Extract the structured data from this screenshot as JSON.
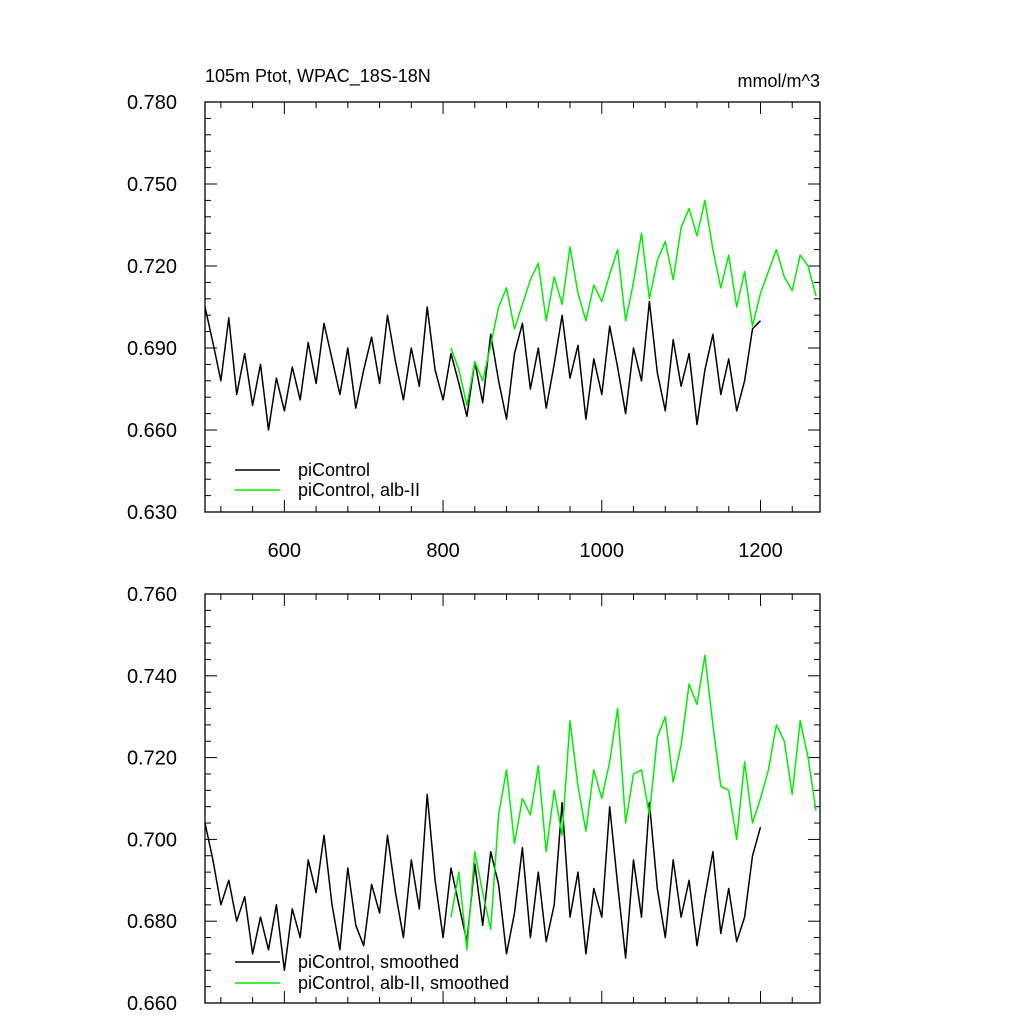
{
  "chart_data": [
    {
      "type": "line",
      "title": "105m Ptot, WPAC_18S-18N",
      "units": "mmol/m^3",
      "xlim": [
        500,
        1275
      ],
      "ylim": [
        0.63,
        0.78
      ],
      "xticks": [
        600,
        800,
        1000,
        1200
      ],
      "xtick_labels": [
        "600",
        "800",
        "1000",
        "1200"
      ],
      "yticks": [
        0.63,
        0.66,
        0.69,
        0.72,
        0.75,
        0.78
      ],
      "ytick_labels": [
        "0.630",
        "0.660",
        "0.690",
        "0.720",
        "0.750",
        "0.780"
      ],
      "legend_position": "bottom-left",
      "series": [
        {
          "name": "piControl",
          "color": "#000000",
          "x": [
            500,
            510,
            520,
            530,
            540,
            550,
            560,
            570,
            580,
            590,
            600,
            610,
            620,
            630,
            640,
            650,
            660,
            670,
            680,
            690,
            700,
            710,
            720,
            730,
            740,
            750,
            760,
            770,
            780,
            790,
            800,
            810,
            820,
            830,
            840,
            850,
            860,
            870,
            880,
            890,
            900,
            910,
            920,
            930,
            940,
            950,
            960,
            970,
            980,
            990,
            1000,
            1010,
            1020,
            1030,
            1040,
            1050,
            1060,
            1070,
            1080,
            1090,
            1100,
            1110,
            1120,
            1130,
            1140,
            1150,
            1160,
            1170,
            1180,
            1190,
            1200
          ],
          "values": [
            0.705,
            0.692,
            0.678,
            0.701,
            0.673,
            0.688,
            0.669,
            0.684,
            0.66,
            0.679,
            0.667,
            0.683,
            0.671,
            0.692,
            0.677,
            0.699,
            0.686,
            0.673,
            0.69,
            0.668,
            0.682,
            0.694,
            0.677,
            0.702,
            0.685,
            0.671,
            0.69,
            0.676,
            0.705,
            0.682,
            0.671,
            0.688,
            0.677,
            0.665,
            0.685,
            0.67,
            0.695,
            0.678,
            0.664,
            0.688,
            0.699,
            0.675,
            0.69,
            0.668,
            0.684,
            0.702,
            0.679,
            0.691,
            0.664,
            0.686,
            0.673,
            0.698,
            0.683,
            0.666,
            0.69,
            0.678,
            0.707,
            0.681,
            0.667,
            0.693,
            0.676,
            0.688,
            0.662,
            0.682,
            0.695,
            0.673,
            0.686,
            0.667,
            0.678,
            0.697,
            0.7
          ]
        },
        {
          "name": "piControl, alb-II",
          "color": "#00ee00",
          "x": [
            810,
            820,
            830,
            840,
            850,
            860,
            870,
            880,
            890,
            900,
            910,
            920,
            930,
            940,
            950,
            960,
            970,
            980,
            990,
            1000,
            1010,
            1020,
            1030,
            1040,
            1050,
            1060,
            1070,
            1080,
            1090,
            1100,
            1110,
            1120,
            1130,
            1140,
            1150,
            1160,
            1170,
            1180,
            1190,
            1200,
            1210,
            1220,
            1230,
            1240,
            1250,
            1260,
            1270
          ],
          "values": [
            0.69,
            0.682,
            0.669,
            0.685,
            0.678,
            0.691,
            0.705,
            0.712,
            0.697,
            0.706,
            0.715,
            0.721,
            0.7,
            0.716,
            0.706,
            0.727,
            0.71,
            0.7,
            0.713,
            0.707,
            0.717,
            0.726,
            0.7,
            0.714,
            0.732,
            0.708,
            0.722,
            0.729,
            0.715,
            0.734,
            0.741,
            0.731,
            0.744,
            0.726,
            0.712,
            0.724,
            0.705,
            0.718,
            0.698,
            0.71,
            0.718,
            0.726,
            0.716,
            0.711,
            0.724,
            0.72,
            0.709
          ]
        }
      ]
    },
    {
      "type": "line",
      "xlim": [
        500,
        1275
      ],
      "ylim": [
        0.66,
        0.76
      ],
      "xticks": [
        600,
        800,
        1000,
        1200
      ],
      "yticks": [
        0.66,
        0.68,
        0.7,
        0.72,
        0.74,
        0.76
      ],
      "ytick_labels": [
        "0.660",
        "0.680",
        "0.700",
        "0.720",
        "0.740",
        "0.760"
      ],
      "legend_position": "bottom-left",
      "series": [
        {
          "name": "piControl, smoothed",
          "color": "#000000",
          "x": [
            500,
            510,
            520,
            530,
            540,
            550,
            560,
            570,
            580,
            590,
            600,
            610,
            620,
            630,
            640,
            650,
            660,
            670,
            680,
            690,
            700,
            710,
            720,
            730,
            740,
            750,
            760,
            770,
            780,
            790,
            800,
            810,
            820,
            830,
            840,
            850,
            860,
            870,
            880,
            890,
            900,
            910,
            920,
            930,
            940,
            950,
            960,
            970,
            980,
            990,
            1000,
            1010,
            1020,
            1030,
            1040,
            1050,
            1060,
            1070,
            1080,
            1090,
            1100,
            1110,
            1120,
            1130,
            1140,
            1150,
            1160,
            1170,
            1180,
            1190,
            1200
          ],
          "values": [
            0.704,
            0.695,
            0.684,
            0.69,
            0.68,
            0.686,
            0.672,
            0.681,
            0.673,
            0.684,
            0.668,
            0.683,
            0.676,
            0.695,
            0.687,
            0.701,
            0.684,
            0.673,
            0.693,
            0.679,
            0.674,
            0.689,
            0.682,
            0.701,
            0.687,
            0.676,
            0.695,
            0.683,
            0.711,
            0.69,
            0.676,
            0.693,
            0.684,
            0.675,
            0.694,
            0.679,
            0.697,
            0.689,
            0.672,
            0.682,
            0.698,
            0.676,
            0.692,
            0.675,
            0.684,
            0.709,
            0.681,
            0.692,
            0.672,
            0.688,
            0.681,
            0.708,
            0.689,
            0.671,
            0.695,
            0.681,
            0.709,
            0.688,
            0.676,
            0.695,
            0.681,
            0.69,
            0.674,
            0.686,
            0.697,
            0.677,
            0.688,
            0.675,
            0.681,
            0.696,
            0.703
          ]
        },
        {
          "name": "piControl, alb-II, smoothed",
          "color": "#00ee00",
          "x": [
            810,
            820,
            830,
            840,
            850,
            860,
            870,
            880,
            890,
            900,
            910,
            920,
            930,
            940,
            950,
            960,
            970,
            980,
            990,
            1000,
            1010,
            1020,
            1030,
            1040,
            1050,
            1060,
            1070,
            1080,
            1090,
            1100,
            1110,
            1120,
            1130,
            1140,
            1150,
            1160,
            1170,
            1180,
            1190,
            1200,
            1210,
            1220,
            1230,
            1240,
            1250,
            1260,
            1270
          ],
          "values": [
            0.681,
            0.692,
            0.673,
            0.697,
            0.687,
            0.678,
            0.706,
            0.717,
            0.699,
            0.71,
            0.706,
            0.718,
            0.697,
            0.712,
            0.701,
            0.729,
            0.713,
            0.702,
            0.717,
            0.71,
            0.719,
            0.732,
            0.704,
            0.716,
            0.717,
            0.706,
            0.725,
            0.73,
            0.714,
            0.723,
            0.738,
            0.733,
            0.745,
            0.728,
            0.713,
            0.712,
            0.7,
            0.719,
            0.704,
            0.71,
            0.717,
            0.728,
            0.724,
            0.711,
            0.729,
            0.72,
            0.707
          ]
        }
      ]
    }
  ]
}
